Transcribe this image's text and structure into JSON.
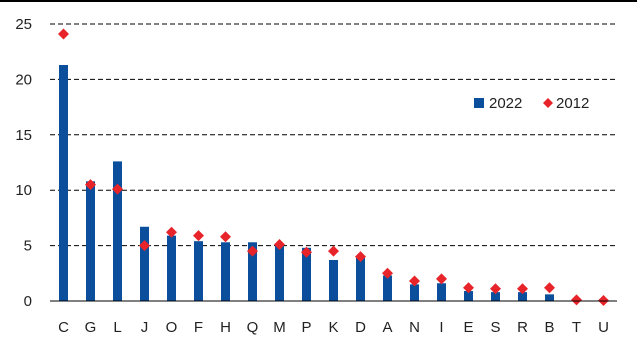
{
  "chart_data": {
    "type": "bar",
    "categories": [
      "C",
      "G",
      "L",
      "J",
      "O",
      "F",
      "H",
      "Q",
      "M",
      "P",
      "K",
      "D",
      "A",
      "N",
      "I",
      "E",
      "S",
      "R",
      "B",
      "T",
      "U"
    ],
    "series": [
      {
        "name": "2022",
        "kind": "bar",
        "color": "#0b4f9c",
        "values": [
          21.3,
          10.8,
          12.6,
          6.7,
          5.9,
          5.4,
          5.3,
          5.3,
          5.0,
          4.8,
          3.7,
          4.1,
          2.3,
          1.5,
          1.6,
          0.9,
          0.8,
          0.8,
          0.6,
          0.05,
          0.05
        ]
      },
      {
        "name": "2012",
        "kind": "marker",
        "marker": "diamond",
        "color": "#e8242b",
        "values": [
          24.1,
          10.5,
          10.1,
          5.0,
          6.2,
          5.9,
          5.8,
          4.5,
          5.1,
          4.4,
          4.5,
          4.0,
          2.5,
          1.8,
          2.0,
          1.2,
          1.1,
          1.1,
          1.2,
          0.1,
          0.05
        ]
      }
    ],
    "title": "",
    "xlabel": "",
    "ylabel": "",
    "ylim": [
      0,
      25
    ],
    "yticks": [
      "0",
      "5",
      "10",
      "15",
      "20",
      "25"
    ],
    "grid": "horizontal dashed",
    "legend_position": "right"
  }
}
